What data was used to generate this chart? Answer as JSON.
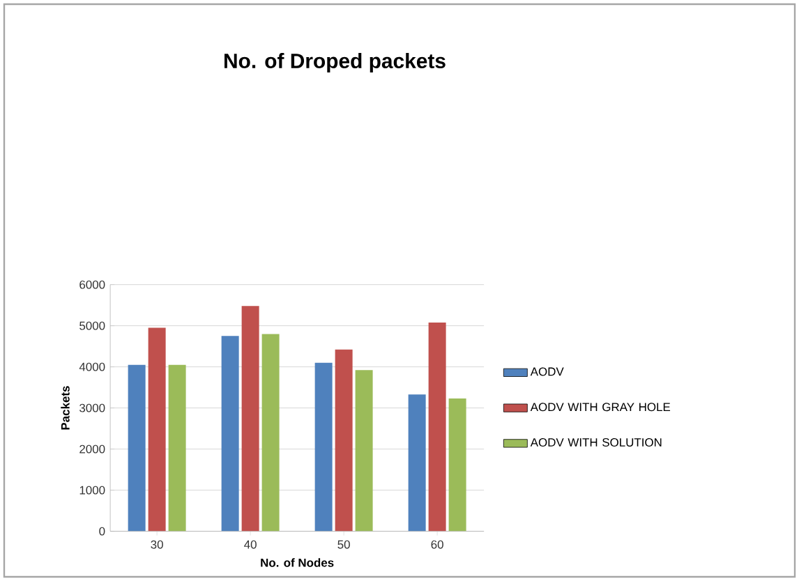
{
  "chart_data": {
    "type": "bar",
    "title": "No. of Droped packets",
    "xlabel": "No. of Nodes",
    "ylabel": "Packets",
    "categories": [
      "30",
      "40",
      "50",
      "60"
    ],
    "series": [
      {
        "name": "AODV",
        "color": "#4f81bd",
        "values": [
          4050,
          4750,
          4100,
          3330
        ]
      },
      {
        "name": "AODV WITH GRAY HOLE",
        "color": "#c0504d",
        "values": [
          4950,
          5480,
          4420,
          5080
        ]
      },
      {
        "name": "AODV WITH SOLUTION",
        "color": "#9bbb59",
        "values": [
          4050,
          4800,
          3920,
          3230
        ]
      }
    ],
    "ylim": [
      0,
      6000
    ],
    "yticks": [
      0,
      1000,
      2000,
      3000,
      4000,
      5000,
      6000
    ],
    "grid": "y",
    "legend": "right"
  }
}
